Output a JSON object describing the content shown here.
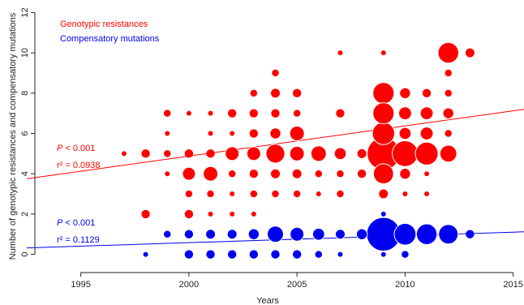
{
  "chart_data": {
    "type": "scatter",
    "xlabel": "Years",
    "ylabel": "Number of genotypic resistances and compensatory mutations",
    "xlim": [
      1992.5,
      2015.5
    ],
    "ylim": [
      -0.5,
      12.3
    ],
    "x_ticks": [
      "1995",
      "2000",
      "2005",
      "2010",
      "2015"
    ],
    "y_ticks": [
      "0",
      "2",
      "4",
      "6",
      "8",
      "10",
      "12"
    ],
    "x_tick_values": [
      1995,
      2000,
      2005,
      2010,
      2015
    ],
    "y_tick_values": [
      0,
      2,
      4,
      6,
      8,
      10,
      12
    ],
    "legend": [
      {
        "label": "Genotypic resistances",
        "color": "#ff0000"
      },
      {
        "label": "Compensatory mutations",
        "color": "#0000ee"
      }
    ],
    "series": [
      {
        "name": "Genotypic resistances",
        "color": "#ff0000",
        "regression": {
          "y_at_xmin": 3.75,
          "y_at_xmax": 7.2
        },
        "stats": {
          "p_prefix": "P",
          "p_text": " < 0.001",
          "r2_text": "r² = 0.0938"
        },
        "points": [
          [
            1997,
            5,
            1
          ],
          [
            1998,
            5,
            3
          ],
          [
            1998,
            2,
            3
          ],
          [
            1999,
            7,
            2
          ],
          [
            1999,
            6,
            1
          ],
          [
            1999,
            5,
            2
          ],
          [
            1999,
            4,
            1
          ],
          [
            2000,
            7,
            1
          ],
          [
            2000,
            5,
            3
          ],
          [
            2000,
            4,
            7
          ],
          [
            2000,
            3,
            2
          ],
          [
            2000,
            2,
            3
          ],
          [
            2000,
            1,
            1
          ],
          [
            2001,
            7,
            1
          ],
          [
            2001,
            6,
            1
          ],
          [
            2001,
            5,
            3
          ],
          [
            2001,
            4,
            9
          ],
          [
            2001,
            3,
            2
          ],
          [
            2001,
            2,
            1
          ],
          [
            2002,
            7,
            3
          ],
          [
            2002,
            6,
            1
          ],
          [
            2002,
            5,
            8
          ],
          [
            2002,
            4,
            2
          ],
          [
            2002,
            3,
            1
          ],
          [
            2002,
            2,
            1
          ],
          [
            2003,
            8,
            2
          ],
          [
            2003,
            7,
            3
          ],
          [
            2003,
            6,
            3
          ],
          [
            2003,
            5,
            8
          ],
          [
            2003,
            4,
            3
          ],
          [
            2003,
            3,
            2
          ],
          [
            2003,
            2,
            1
          ],
          [
            2004,
            9,
            2
          ],
          [
            2004,
            8,
            4
          ],
          [
            2004,
            7,
            3
          ],
          [
            2004,
            6,
            5
          ],
          [
            2004,
            5,
            15
          ],
          [
            2004,
            4,
            4
          ],
          [
            2004,
            3,
            2
          ],
          [
            2005,
            8,
            3
          ],
          [
            2005,
            7,
            2
          ],
          [
            2005,
            6,
            9
          ],
          [
            2005,
            5,
            9
          ],
          [
            2005,
            4,
            4
          ],
          [
            2005,
            3,
            2
          ],
          [
            2006,
            5,
            10
          ],
          [
            2006,
            4,
            2
          ],
          [
            2006,
            3,
            1
          ],
          [
            2007,
            10,
            1
          ],
          [
            2007,
            7,
            3
          ],
          [
            2007,
            5,
            6
          ],
          [
            2007,
            4,
            2
          ],
          [
            2007,
            3,
            2
          ],
          [
            2008,
            5,
            4
          ],
          [
            2008,
            4,
            3
          ],
          [
            2009,
            10,
            1
          ],
          [
            2009,
            8,
            19
          ],
          [
            2009,
            7,
            19
          ],
          [
            2009,
            6,
            21
          ],
          [
            2009,
            5,
            45
          ],
          [
            2009,
            4,
            17
          ],
          [
            2009,
            3,
            4
          ],
          [
            2009,
            1,
            2
          ],
          [
            2010,
            8,
            5
          ],
          [
            2010,
            7,
            7
          ],
          [
            2010,
            6,
            6
          ],
          [
            2010,
            5,
            28
          ],
          [
            2010,
            4,
            5
          ],
          [
            2010,
            3,
            1
          ],
          [
            2011,
            8,
            3
          ],
          [
            2011,
            7,
            7
          ],
          [
            2011,
            6,
            7
          ],
          [
            2011,
            5,
            22
          ],
          [
            2011,
            4,
            1
          ],
          [
            2011,
            3,
            1
          ],
          [
            2012,
            10,
            18
          ],
          [
            2012,
            9,
            2
          ],
          [
            2012,
            8,
            2
          ],
          [
            2012,
            7,
            5
          ],
          [
            2012,
            6,
            2
          ],
          [
            2012,
            5,
            12
          ],
          [
            2013,
            10,
            4
          ]
        ]
      },
      {
        "name": "Compensatory mutations",
        "color": "#0000ee",
        "regression": {
          "y_at_xmin": 0.32,
          "y_at_xmax": 1.12
        },
        "stats": {
          "p_prefix": "P",
          "p_text": " < 0.001",
          "r2_text": "r² = 0.1129"
        },
        "points": [
          [
            1998,
            0,
            1
          ],
          [
            1999,
            1,
            2
          ],
          [
            2000,
            1,
            3
          ],
          [
            2000,
            0,
            3
          ],
          [
            2001,
            1,
            4
          ],
          [
            2001,
            0,
            3
          ],
          [
            2002,
            1,
            4
          ],
          [
            2002,
            0,
            3
          ],
          [
            2003,
            1,
            5
          ],
          [
            2003,
            0,
            3
          ],
          [
            2004,
            1,
            11
          ],
          [
            2004,
            0,
            3
          ],
          [
            2005,
            1,
            8
          ],
          [
            2005,
            0,
            3
          ],
          [
            2006,
            1,
            6
          ],
          [
            2006,
            0,
            2
          ],
          [
            2007,
            1,
            4
          ],
          [
            2007,
            0,
            1
          ],
          [
            2008,
            1,
            5
          ],
          [
            2009,
            1,
            48
          ],
          [
            2009,
            2,
            1
          ],
          [
            2009,
            0,
            1
          ],
          [
            2010,
            1,
            20
          ],
          [
            2010,
            0,
            2
          ],
          [
            2011,
            1,
            18
          ],
          [
            2012,
            1,
            16
          ],
          [
            2013,
            1,
            3
          ]
        ]
      }
    ]
  }
}
